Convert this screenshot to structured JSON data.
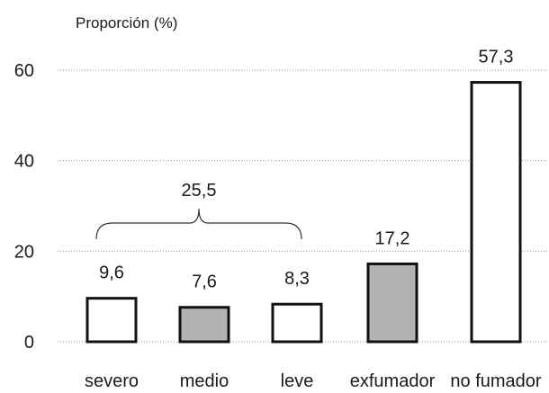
{
  "chart_data": {
    "type": "bar",
    "ylabel": "Proporción (%)",
    "ylim": [
      0,
      60
    ],
    "yticks": [
      "0",
      "20",
      "40",
      "60"
    ],
    "grid": true,
    "categories": [
      "severo",
      "medio",
      "leve",
      "exfumador",
      "no fumador"
    ],
    "values": [
      9.6,
      7.6,
      8.3,
      17.2,
      57.3
    ],
    "value_labels": [
      "9,6",
      "7,6",
      "8,3",
      "17,2",
      "57,3"
    ],
    "bar_colors": [
      "#ffffff",
      "#b3b3b3",
      "#ffffff",
      "#b3b3b3",
      "#ffffff"
    ],
    "annotation": {
      "label": "25,5",
      "spans": [
        "severo",
        "medio",
        "leve"
      ]
    }
  }
}
